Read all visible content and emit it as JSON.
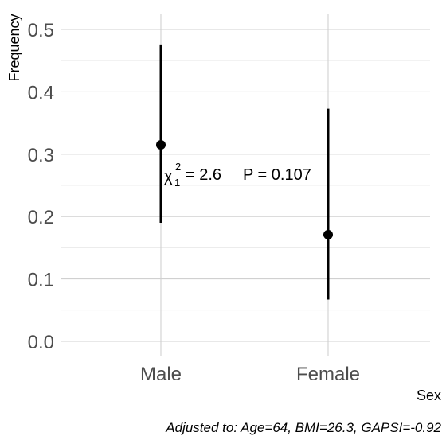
{
  "chart_data": {
    "type": "scatter",
    "categories": [
      "Male",
      "Female"
    ],
    "series": [
      {
        "values": [
          0.315,
          0.171
        ],
        "lower": [
          0.19,
          0.067
        ],
        "upper": [
          0.476,
          0.373
        ]
      }
    ],
    "xlabel": "Sex",
    "ylabel": "Frequency",
    "ylim": [
      0,
      0.52
    ],
    "yticks": [
      "0.0",
      "0.1",
      "0.2",
      "0.3",
      "0.4",
      "0.5"
    ],
    "grid": true,
    "annotation": {
      "chi_symbol": "χ",
      "chi_sup": "2",
      "chi_sub": "1",
      "chi_value": "= 2.6",
      "p_text": "P = 0.107"
    },
    "caption": "Adjusted to: Age=64, BMI=26.3, GAPSI=-0.92"
  }
}
